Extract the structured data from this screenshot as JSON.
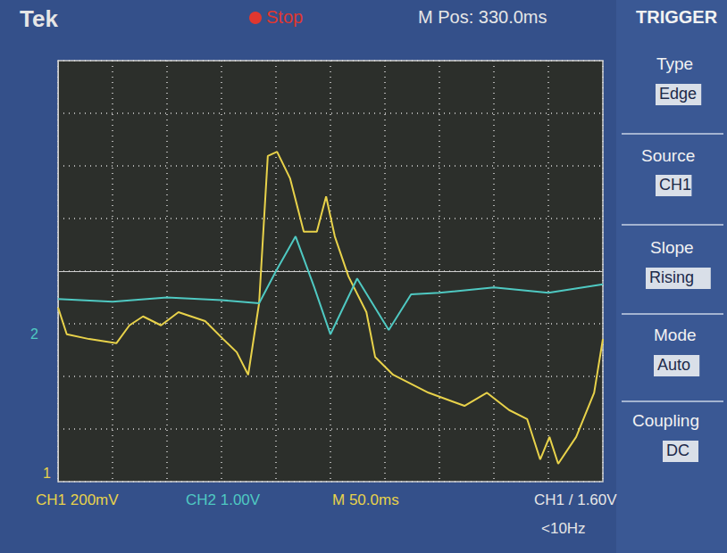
{
  "chart_data": {
    "type": "line",
    "xlim": [
      0,
      10
    ],
    "ylim": [
      -4,
      4
    ],
    "xticks": [
      0,
      1,
      2,
      3,
      4,
      5,
      6,
      7,
      8,
      9,
      10
    ],
    "yticks": [
      -4,
      -3,
      -2,
      -1,
      0,
      1,
      2,
      3,
      4
    ],
    "grid": true,
    "tick_labels": false,
    "series": [
      {
        "name": "CH1",
        "color": "#e8d24a",
        "x": [
          0,
          0.16,
          0.57,
          1.07,
          1.31,
          1.56,
          1.89,
          2.21,
          2.7,
          3.03,
          3.28,
          3.49,
          3.69,
          3.85,
          4.02,
          4.26,
          4.51,
          4.75,
          4.92,
          5.08,
          5.33,
          5.66,
          5.82,
          6.15,
          6.8,
          7.46,
          7.87,
          8.28,
          8.61,
          8.85,
          9.02,
          9.18,
          9.51,
          9.84,
          10.0
        ],
        "values": [
          -0.69,
          -1.2,
          -1.29,
          -1.37,
          -1.03,
          -0.86,
          -1.03,
          -0.78,
          -0.95,
          -1.29,
          -1.54,
          -1.97,
          -0.61,
          2.19,
          2.27,
          1.76,
          0.75,
          0.75,
          1.42,
          0.66,
          -0.1,
          -0.78,
          -1.63,
          -1.97,
          -2.31,
          -2.56,
          -2.31,
          -2.64,
          -2.81,
          -3.58,
          -3.15,
          -3.66,
          -3.15,
          -2.31,
          -1.29
        ]
      },
      {
        "name": "CH2",
        "color": "#4fc9c2",
        "x": [
          0,
          1.0,
          2.0,
          3.0,
          3.69,
          4.0,
          4.36,
          4.7,
          5.0,
          5.49,
          6.07,
          6.48,
          7.0,
          8.0,
          9.0,
          10.0
        ],
        "values": [
          -0.53,
          -0.58,
          -0.5,
          -0.55,
          -0.61,
          0.0,
          0.66,
          -0.3,
          -1.2,
          -0.14,
          -1.12,
          -0.44,
          -0.41,
          -0.31,
          -0.41,
          -0.25
        ]
      }
    ],
    "annotations": [
      "Tek",
      "Stop",
      "M Pos: 330.0ms",
      "TRIGGER",
      "Type",
      "Edge",
      "Source",
      "CH1",
      "Slope",
      "Rising",
      "Mode",
      "Auto",
      "Coupling",
      "DC",
      "CH1 200mV",
      "CH2 1.00V",
      "M 50.0ms",
      "CH1 / 1.60V",
      "<10Hz",
      "1",
      "2"
    ]
  }
}
